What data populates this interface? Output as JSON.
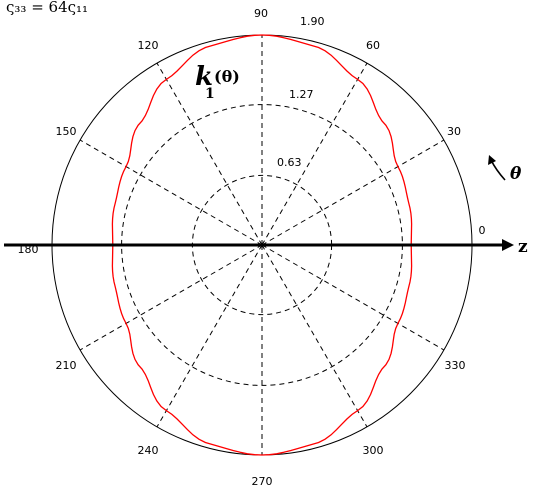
{
  "chart_data": {
    "type": "line",
    "projection": "polar",
    "title": "",
    "header_formula": "ς₃₃ = 64ς₁₁",
    "curve_label": {
      "main": "k",
      "sub": "1",
      "arg": "(θ)"
    },
    "axis_labels": {
      "horizontal": "z",
      "angular": "θ"
    },
    "radial_ticks": [
      0.63,
      1.27,
      1.9
    ],
    "radial_tick_labels": [
      "0.63",
      "1.27",
      "1.90"
    ],
    "rmax": 1.9,
    "angular_ticks_deg": [
      0,
      30,
      60,
      90,
      120,
      150,
      180,
      210,
      240,
      270,
      300,
      330
    ],
    "angular_tick_labels": [
      "0",
      "30",
      "60",
      "90",
      "120",
      "150",
      "180",
      "210",
      "240",
      "270",
      "300",
      "330"
    ],
    "grid": true,
    "series": [
      {
        "color": "#ff0000",
        "theta_deg": [
          0,
          15,
          30,
          45,
          60,
          75,
          90
        ],
        "r": [
          1.35,
          1.38,
          1.42,
          1.56,
          1.73,
          1.86,
          1.9
        ]
      }
    ]
  },
  "colors": {
    "curve": "#ff0000",
    "axes": "#000000",
    "grid": "#000000"
  }
}
